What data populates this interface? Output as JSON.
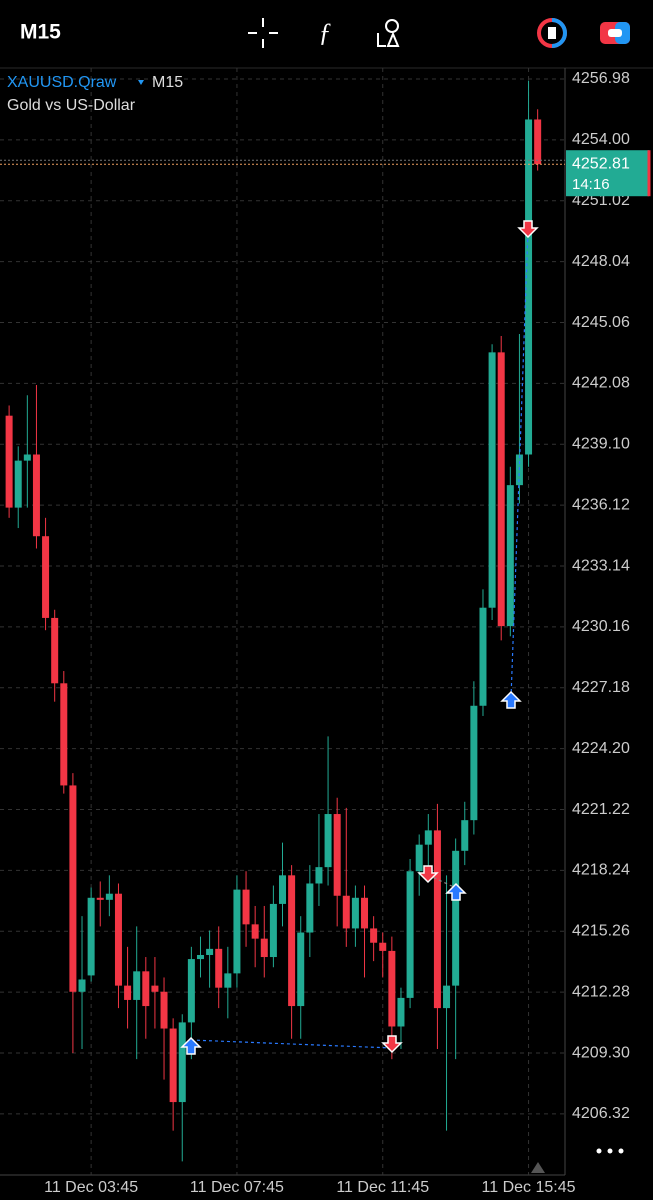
{
  "header": {
    "timeframe": "M15"
  },
  "chart_data": {
    "type": "candlestick",
    "symbol": "XAUUSD.Qraw",
    "timeframe": "M15",
    "description": "Gold vs US-Dollar",
    "up_color": "#22ab94",
    "down_color": "#f23645",
    "open": [
      4240.5,
      4236,
      4238.3,
      4238.6,
      4234.6,
      4230.6,
      4227.4,
      4222.4,
      4212.3,
      4213.1,
      4216.9,
      4216.8,
      4217.1,
      4212.6,
      4211.9,
      4213.3,
      4212.6,
      4212.3,
      4210.5,
      4206.9,
      4210.8,
      4213.9,
      4214.1,
      4214.4,
      4212.5,
      4213.2,
      4217.3,
      4215.6,
      4214.9,
      4214,
      4216.6,
      4218,
      4211.6,
      4215.2,
      4217.6,
      4218.4,
      4221,
      4217,
      4215.4,
      4216.9,
      4215.4,
      4214.7,
      4214.3,
      4210.6,
      4212,
      4218.2,
      4219.5,
      4220.2,
      4211.5,
      4212.6,
      4219.2,
      4220.7,
      4226.3,
      4231.1,
      4243.6,
      4230.2,
      4237.1,
      4238.6,
      4255
    ],
    "high": [
      4241,
      4239,
      4241.5,
      4242,
      4235.5,
      4231,
      4228,
      4223,
      4216,
      4217.4,
      4217.7,
      4218,
      4217.6,
      4214.5,
      4215.5,
      4214,
      4214,
      4213,
      4211,
      4211.2,
      4214.5,
      4215,
      4215.3,
      4215.5,
      4214.5,
      4218,
      4218.2,
      4216.5,
      4216.5,
      4217.5,
      4219.6,
      4218.5,
      4216,
      4218.5,
      4221,
      4224.8,
      4221.8,
      4221.3,
      4217.5,
      4217.5,
      4216,
      4215.2,
      4215,
      4212.5,
      4218.8,
      4220,
      4221,
      4221.5,
      4218,
      4219.8,
      4221.6,
      4227.5,
      4232,
      4244,
      4244.4,
      4238,
      4244.5,
      4256.9,
      4255.5
    ],
    "low": [
      4235.5,
      4235,
      4236,
      4234,
      4230,
      4226.5,
      4222,
      4209.3,
      4209.5,
      4212.8,
      4215.5,
      4216,
      4211.5,
      4210.5,
      4209,
      4210,
      4210.5,
      4208,
      4205.5,
      4204,
      4209,
      4213,
      4212.5,
      4211.5,
      4211,
      4212.5,
      4214.5,
      4213.5,
      4213,
      4213.5,
      4215.5,
      4210,
      4210,
      4214,
      4216.5,
      4217.5,
      4215.5,
      4214.5,
      4214.5,
      4213,
      4213.8,
      4213,
      4209,
      4209.5,
      4211.5,
      4217,
      4218,
      4209.5,
      4205.5,
      4209,
      4218.5,
      4220,
      4225.8,
      4230.5,
      4229.5,
      4229.7,
      4236.2,
      4238,
      4252.5
    ],
    "close": [
      4236,
      4238.3,
      4238.6,
      4234.6,
      4230.6,
      4227.4,
      4222.4,
      4212.3,
      4212.9,
      4216.9,
      4216.8,
      4217.1,
      4212.6,
      4211.9,
      4213.3,
      4211.6,
      4212.3,
      4210.5,
      4206.9,
      4210.8,
      4213.9,
      4214.1,
      4214.4,
      4212.5,
      4213.2,
      4217.3,
      4215.6,
      4214.9,
      4214,
      4216.6,
      4218,
      4211.6,
      4215.2,
      4217.6,
      4218.4,
      4221,
      4217,
      4215.4,
      4216.9,
      4215.4,
      4214.7,
      4214.3,
      4210.6,
      4212,
      4218.2,
      4219.5,
      4220.2,
      4211.5,
      4212.6,
      4219.2,
      4220.7,
      4226.3,
      4231.1,
      4243.6,
      4230.2,
      4237.1,
      4238.6,
      4255,
      4252.81
    ],
    "xlim": [
      -1,
      61
    ],
    "xticks": [
      {
        "value": 9,
        "label": "11 Dec 03:45"
      },
      {
        "value": 25,
        "label": "11 Dec 07:45"
      },
      {
        "value": 41,
        "label": "11 Dec 11:45"
      },
      {
        "value": 57,
        "label": "11 Dec 15:45"
      }
    ],
    "ylim": [
      4203.33,
      4257.52
    ],
    "yticks": [
      {
        "value": 4206.32,
        "label": "4206.32"
      },
      {
        "value": 4209.3,
        "label": "4209.30"
      },
      4212.28,
      4215.26,
      4218.24,
      4221.22,
      {
        "value": 4224.2,
        "label": "4224.20"
      },
      4227.18,
      4230.16,
      4233.14,
      4236.12,
      {
        "value": 4239.1,
        "label": "4239.10"
      },
      4242.08,
      4245.06,
      4248.04,
      4251.02,
      {
        "value": 4254,
        "label": "4254.00"
      },
      4256.98
    ],
    "grid": true,
    "last_price": {
      "value": 4252.81,
      "time": "14:16"
    }
  }
}
